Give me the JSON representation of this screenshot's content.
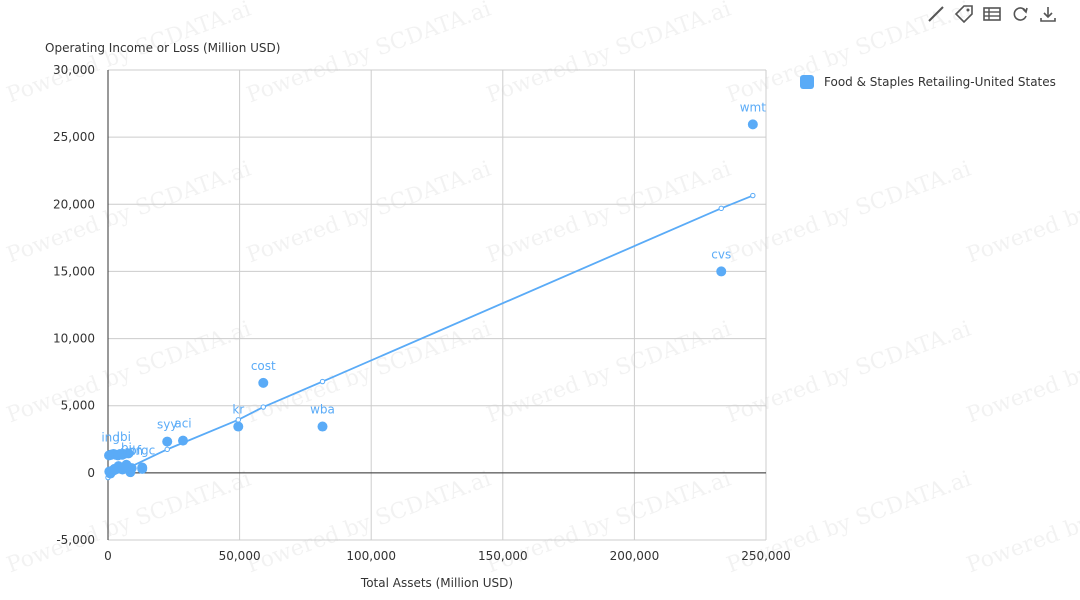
{
  "toolbar": {
    "items": [
      {
        "name": "line-tool-icon"
      },
      {
        "name": "tag-icon"
      },
      {
        "name": "data-view-icon"
      },
      {
        "name": "refresh-icon"
      },
      {
        "name": "download-icon"
      }
    ]
  },
  "legend": {
    "label": "Food & Staples Retailing-United States",
    "color": "#5aabf7"
  },
  "watermark_text": "Powered by SCDATA.ai",
  "chart_data": {
    "type": "scatter",
    "title": "",
    "xlabel": "Total Assets (Million USD)",
    "ylabel": "Operating Income or Loss (Million USD)",
    "xlim": [
      0,
      250000
    ],
    "ylim": [
      -5000,
      30000
    ],
    "x_ticks": [
      "0",
      "50,000",
      "100,000",
      "150,000",
      "200,000",
      "250,000"
    ],
    "y_ticks": [
      "-5,000",
      "0",
      "5,000",
      "10,000",
      "15,000",
      "20,000",
      "25,000",
      "30,000"
    ],
    "grid": true,
    "legend_position": "top-right",
    "series": [
      {
        "name": "Food & Staples Retailing-United States",
        "color": "#5aabf7",
        "points": [
          {
            "label": "wmt",
            "x": 245000,
            "y": 25950
          },
          {
            "label": "cvs",
            "x": 233000,
            "y": 15000
          },
          {
            "label": "cost",
            "x": 59000,
            "y": 6700
          },
          {
            "label": "wba",
            "x": 81500,
            "y": 3450
          },
          {
            "label": "kr",
            "x": 49500,
            "y": 3450
          },
          {
            "label": "syy",
            "x": 22500,
            "y": 2330
          },
          {
            "label": "aci",
            "x": 28500,
            "y": 2400
          },
          {
            "label": "ing",
            "x": 1000,
            "y": 1350
          },
          {
            "label": "lbi",
            "x": 6000,
            "y": 1400
          },
          {
            "label": "pfgc",
            "x": 13000,
            "y": 400
          },
          {
            "label": "udn",
            "x": 9000,
            "y": 350
          },
          {
            "label": "bj",
            "x": 7000,
            "y": 600
          },
          {
            "label": "",
            "x": 400,
            "y": 1300
          },
          {
            "label": "",
            "x": 1200,
            "y": 1350
          },
          {
            "label": "",
            "x": 2100,
            "y": 1400
          },
          {
            "label": "",
            "x": 3000,
            "y": 1350
          },
          {
            "label": "",
            "x": 3800,
            "y": 1300
          },
          {
            "label": "",
            "x": 4600,
            "y": 1400
          },
          {
            "label": "",
            "x": 5400,
            "y": 1350
          },
          {
            "label": "",
            "x": 7800,
            "y": 1450
          },
          {
            "label": "",
            "x": 500,
            "y": 100
          },
          {
            "label": "",
            "x": 900,
            "y": -50
          },
          {
            "label": "",
            "x": 1500,
            "y": 150
          },
          {
            "label": "",
            "x": 2500,
            "y": 300
          },
          {
            "label": "",
            "x": 4000,
            "y": 500
          },
          {
            "label": "",
            "x": 5500,
            "y": 250
          },
          {
            "label": "",
            "x": 8500,
            "y": 50
          },
          {
            "label": "",
            "x": 13000,
            "y": 300
          }
        ]
      }
    ],
    "trendline": {
      "points": [
        {
          "x": 0,
          "y": -350
        },
        {
          "x": 22500,
          "y": 1750
        },
        {
          "x": 49500,
          "y": 3950
        },
        {
          "x": 59000,
          "y": 4900
        },
        {
          "x": 81500,
          "y": 6800
        },
        {
          "x": 233000,
          "y": 19700
        },
        {
          "x": 245000,
          "y": 20650
        }
      ]
    }
  }
}
